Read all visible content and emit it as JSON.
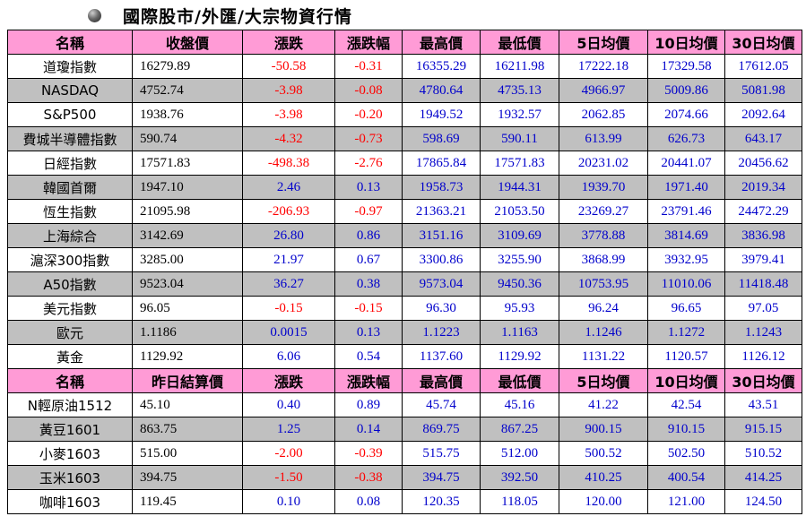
{
  "title": "國際股市/外匯/大宗物資行情",
  "colors": {
    "header_bg": "#ff9bd6",
    "stripe_bg": "#c0c0c0",
    "up": "#0000cc",
    "down": "#ff0000"
  },
  "stock_headers": [
    "名稱",
    "收盤價",
    "漲跌",
    "漲跌幅",
    "最高價",
    "最低價",
    "5日均價",
    "10日均價",
    "30日均價"
  ],
  "stock_rows": [
    [
      "道瓊指數",
      "16279.89",
      "-50.58",
      "-0.31",
      "16355.29",
      "16211.98",
      "17222.18",
      "17329.58",
      "17612.05"
    ],
    [
      "NASDAQ",
      "4752.74",
      "-3.98",
      "-0.08",
      "4780.64",
      "4735.13",
      "4966.97",
      "5009.86",
      "5081.98"
    ],
    [
      "S&P500",
      "1938.76",
      "-3.98",
      "-0.20",
      "1949.52",
      "1932.57",
      "2062.85",
      "2074.66",
      "2092.64"
    ],
    [
      "費城半導體指數",
      "590.74",
      "-4.32",
      "-0.73",
      "598.69",
      "590.11",
      "613.99",
      "626.73",
      "643.17"
    ],
    [
      "日經指數",
      "17571.83",
      "-498.38",
      "-2.76",
      "17865.84",
      "17571.83",
      "20231.02",
      "20441.07",
      "20456.62"
    ],
    [
      "韓國首爾",
      "1947.10",
      "2.46",
      "0.13",
      "1958.73",
      "1944.31",
      "1939.70",
      "1971.40",
      "2019.34"
    ],
    [
      "恆生指數",
      "21095.98",
      "-206.93",
      "-0.97",
      "21363.21",
      "21053.50",
      "23269.27",
      "23791.46",
      "24472.29"
    ],
    [
      "上海綜合",
      "3142.69",
      "26.80",
      "0.86",
      "3151.16",
      "3109.69",
      "3778.88",
      "3814.69",
      "3836.98"
    ],
    [
      "滬深300指數",
      "3285.00",
      "21.97",
      "0.67",
      "3300.86",
      "3255.90",
      "3868.99",
      "3932.95",
      "3979.41"
    ],
    [
      "A50指數",
      "9523.04",
      "36.27",
      "0.38",
      "9573.04",
      "9450.36",
      "10753.95",
      "11010.06",
      "11418.48"
    ],
    [
      "美元指數",
      "96.05",
      "-0.15",
      "-0.15",
      "96.30",
      "95.93",
      "96.24",
      "96.65",
      "97.05"
    ],
    [
      "歐元",
      "1.1186",
      "0.0015",
      "0.13",
      "1.1223",
      "1.1163",
      "1.1246",
      "1.1272",
      "1.1243"
    ],
    [
      "黃金",
      "1129.92",
      "6.06",
      "0.54",
      "1137.60",
      "1129.92",
      "1131.22",
      "1120.57",
      "1126.12"
    ]
  ],
  "commodity_headers": [
    "名稱",
    "昨日結算價",
    "漲跌",
    "漲跌幅",
    "最高價",
    "最低價",
    "5日均價",
    "10日均價",
    "30日均價"
  ],
  "commodity_rows": [
    [
      "N輕原油1512",
      "45.10",
      "0.40",
      "0.89",
      "45.74",
      "45.16",
      "41.22",
      "42.54",
      "43.51"
    ],
    [
      "黃豆1601",
      "863.75",
      "1.25",
      "0.14",
      "869.75",
      "867.25",
      "900.15",
      "910.15",
      "915.15"
    ],
    [
      "小麥1603",
      "515.00",
      "-2.00",
      "-0.39",
      "515.75",
      "512.00",
      "500.52",
      "502.50",
      "510.52"
    ],
    [
      "玉米1603",
      "394.75",
      "-1.50",
      "-0.38",
      "394.75",
      "392.50",
      "410.25",
      "400.54",
      "414.25"
    ],
    [
      "咖啡1603",
      "119.45",
      "0.10",
      "0.08",
      "120.35",
      "118.05",
      "120.00",
      "121.00",
      "124.50"
    ]
  ]
}
